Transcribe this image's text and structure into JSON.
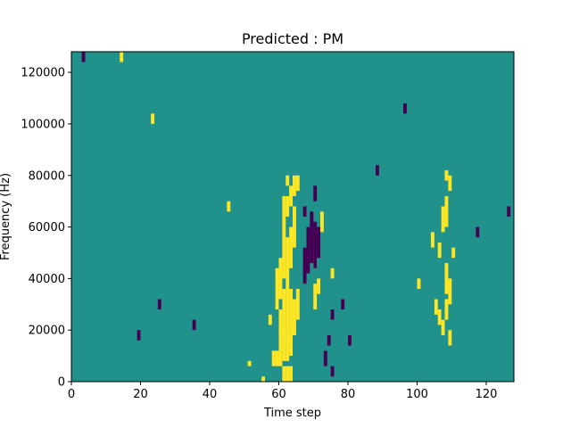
{
  "chart_data": {
    "type": "heatmap",
    "title": "Predicted : PM",
    "xlabel": "Time step",
    "ylabel": "Frequency (Hz)",
    "xlim": [
      0,
      128
    ],
    "ylim": [
      0,
      128000
    ],
    "xticks": [
      0,
      20,
      40,
      60,
      80,
      100,
      120
    ],
    "yticks": [
      0,
      20000,
      40000,
      60000,
      80000,
      100000,
      120000
    ],
    "grid": false,
    "colormap": "viridis",
    "colors": {
      "background": "#21918c",
      "high": "#fde725",
      "low": "#440154"
    },
    "n_time_steps": 128,
    "n_freq_bins": 64,
    "freq_bin_hz": 2000,
    "default_value": 0,
    "cells": [
      {
        "t": 61,
        "f0": 0,
        "f1": 3,
        "v": 1
      },
      {
        "t": 62,
        "f0": 0,
        "f1": 3,
        "v": 1
      },
      {
        "t": 63,
        "f0": 0,
        "f1": 3,
        "v": 1
      },
      {
        "t": 58,
        "f0": 3,
        "f1": 6,
        "v": 1
      },
      {
        "t": 59,
        "f0": 3,
        "f1": 6,
        "v": 1
      },
      {
        "t": 60,
        "f0": 3,
        "f1": 8,
        "v": 1
      },
      {
        "t": 61,
        "f0": 4,
        "f1": 10,
        "v": 1
      },
      {
        "t": 62,
        "f0": 4,
        "f1": 10,
        "v": 1
      },
      {
        "t": 63,
        "f0": 5,
        "f1": 9,
        "v": 1
      },
      {
        "t": 60,
        "f0": 8,
        "f1": 14,
        "v": 1
      },
      {
        "t": 61,
        "f0": 9,
        "f1": 18,
        "v": 1
      },
      {
        "t": 62,
        "f0": 10,
        "f1": 20,
        "v": 1
      },
      {
        "t": 63,
        "f0": 8,
        "f1": 18,
        "v": 1
      },
      {
        "t": 64,
        "f0": 9,
        "f1": 16,
        "v": 1
      },
      {
        "t": 65,
        "f0": 12,
        "f1": 18,
        "v": 1
      },
      {
        "t": 59,
        "f0": 14,
        "f1": 22,
        "v": 1
      },
      {
        "t": 60,
        "f0": 16,
        "f1": 24,
        "v": 1
      },
      {
        "t": 61,
        "f0": 20,
        "f1": 30,
        "v": 1
      },
      {
        "t": 62,
        "f0": 20,
        "f1": 28,
        "v": 1
      },
      {
        "t": 63,
        "f0": 22,
        "f1": 30,
        "v": 1
      },
      {
        "t": 64,
        "f0": 26,
        "f1": 34,
        "v": 1
      },
      {
        "t": 61,
        "f0": 30,
        "f1": 36,
        "v": 1
      },
      {
        "t": 62,
        "f0": 32,
        "f1": 36,
        "v": 1
      },
      {
        "t": 63,
        "f0": 34,
        "f1": 38,
        "v": 1
      },
      {
        "t": 64,
        "f0": 36,
        "f1": 40,
        "v": 1
      },
      {
        "t": 65,
        "f0": 37,
        "f1": 40,
        "v": 1
      },
      {
        "t": 62,
        "f0": 38,
        "f1": 40,
        "v": 1
      },
      {
        "t": 55,
        "f0": 0,
        "f1": 1,
        "v": 1
      },
      {
        "t": 51,
        "f0": 3,
        "f1": 4,
        "v": 1
      },
      {
        "t": 57,
        "f0": 11,
        "f1": 13,
        "v": 1
      },
      {
        "t": 70,
        "f0": 14,
        "f1": 19,
        "v": 1
      },
      {
        "t": 71,
        "f0": 17,
        "f1": 20,
        "v": 1
      },
      {
        "t": 70,
        "f0": 22,
        "f1": 25,
        "v": 1
      },
      {
        "t": 75,
        "f0": 20,
        "f1": 22,
        "v": 1
      },
      {
        "t": 72,
        "f0": 29,
        "f1": 33,
        "v": 1
      },
      {
        "t": 67,
        "f0": 19,
        "f1": 26,
        "v": -1
      },
      {
        "t": 68,
        "f0": 21,
        "f1": 30,
        "v": -1
      },
      {
        "t": 69,
        "f0": 23,
        "f1": 33,
        "v": -1
      },
      {
        "t": 70,
        "f0": 22,
        "f1": 31,
        "v": -1
      },
      {
        "t": 71,
        "f0": 24,
        "f1": 30,
        "v": -1
      },
      {
        "t": 67,
        "f0": 32,
        "f1": 34,
        "v": -1
      },
      {
        "t": 70,
        "f0": 35,
        "f1": 38,
        "v": -1
      },
      {
        "t": 69,
        "f0": 28,
        "f1": 32,
        "v": -1
      },
      {
        "t": 74,
        "f0": 7,
        "f1": 9,
        "v": -1
      },
      {
        "t": 73,
        "f0": 3,
        "f1": 6,
        "v": -1
      },
      {
        "t": 75,
        "f0": 1,
        "f1": 3,
        "v": -1
      },
      {
        "t": 78,
        "f0": 14,
        "f1": 16,
        "v": -1
      },
      {
        "t": 75,
        "f0": 12,
        "f1": 14,
        "v": -1
      },
      {
        "t": 80,
        "f0": 7,
        "f1": 9,
        "v": -1
      },
      {
        "t": 106,
        "f0": 11,
        "f1": 14,
        "v": 1
      },
      {
        "t": 107,
        "f0": 9,
        "f1": 12,
        "v": 1
      },
      {
        "t": 105,
        "f0": 13,
        "f1": 16,
        "v": 1
      },
      {
        "t": 108,
        "f0": 12,
        "f1": 16,
        "v": 1
      },
      {
        "t": 109,
        "f0": 7,
        "f1": 10,
        "v": 1
      },
      {
        "t": 107,
        "f0": 29,
        "f1": 34,
        "v": 1
      },
      {
        "t": 108,
        "f0": 30,
        "f1": 36,
        "v": 1
      },
      {
        "t": 108,
        "f0": 17,
        "f1": 23,
        "v": 1
      },
      {
        "t": 109,
        "f0": 15,
        "f1": 20,
        "v": 1
      },
      {
        "t": 104,
        "f0": 26,
        "f1": 29,
        "v": 1
      },
      {
        "t": 106,
        "f0": 24,
        "f1": 27,
        "v": 1
      },
      {
        "t": 110,
        "f0": 24,
        "f1": 26,
        "v": 1
      },
      {
        "t": 108,
        "f0": 39,
        "f1": 41,
        "v": 1
      },
      {
        "t": 109,
        "f0": 37,
        "f1": 40,
        "v": 1
      },
      {
        "t": 3,
        "f0": 62,
        "f1": 64,
        "v": -1
      },
      {
        "t": 14,
        "f0": 62,
        "f1": 64,
        "v": 1
      },
      {
        "t": 35,
        "f0": 10,
        "f1": 12,
        "v": -1
      },
      {
        "t": 19,
        "f0": 8,
        "f1": 10,
        "v": -1
      },
      {
        "t": 25,
        "f0": 14,
        "f1": 16,
        "v": -1
      },
      {
        "t": 45,
        "f0": 33,
        "f1": 35,
        "v": 1
      },
      {
        "t": 88,
        "f0": 40,
        "f1": 42,
        "v": -1
      },
      {
        "t": 100,
        "f0": 18,
        "f1": 20,
        "v": 1
      },
      {
        "t": 117,
        "f0": 28,
        "f1": 30,
        "v": -1
      },
      {
        "t": 126,
        "f0": 32,
        "f1": 34,
        "v": -1
      },
      {
        "t": 23,
        "f0": 50,
        "f1": 52,
        "v": 1
      },
      {
        "t": 96,
        "f0": 52,
        "f1": 54,
        "v": -1
      }
    ]
  }
}
